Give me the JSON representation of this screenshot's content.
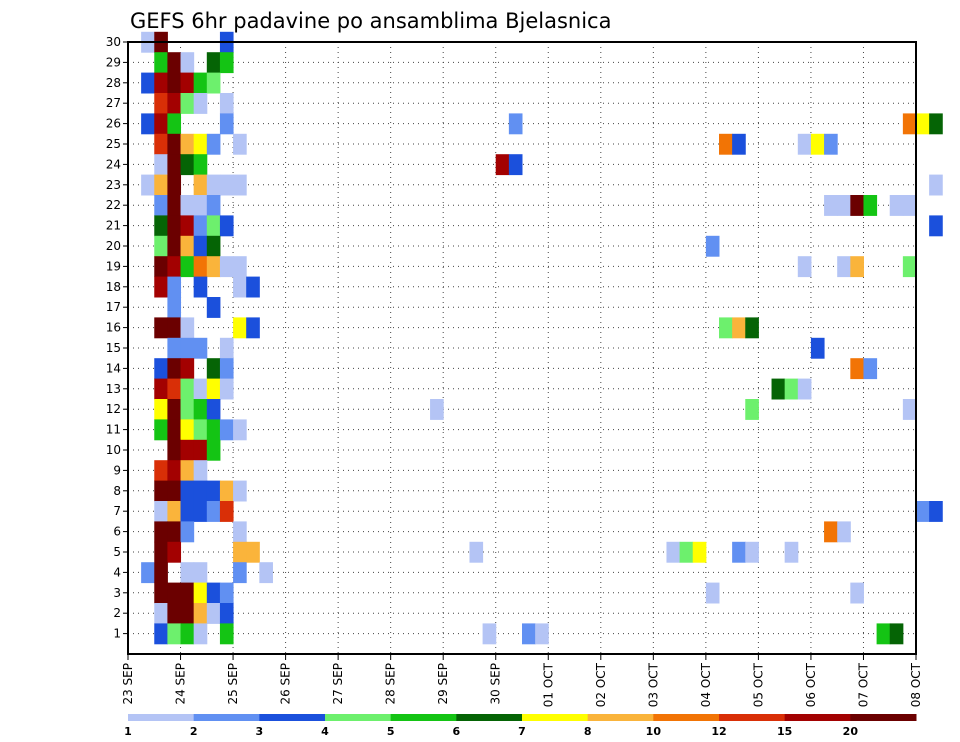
{
  "chart_data": {
    "type": "heatmap",
    "title": "GEFS 6hr padavine po ansamblima Bjelasnica",
    "xlabel": "",
    "ylabel": "",
    "y_ticks": [
      30,
      29,
      28,
      27,
      26,
      25,
      24,
      23,
      22,
      21,
      20,
      19,
      18,
      17,
      16,
      15,
      14,
      13,
      12,
      11,
      10,
      9,
      8,
      7,
      6,
      5,
      4,
      3,
      2,
      1
    ],
    "y_range": [
      0,
      30
    ],
    "x_tick_labels": [
      "23 SEP",
      "24 SEP",
      "25 SEP",
      "26 SEP",
      "27 SEP",
      "28 SEP",
      "29 SEP",
      "30 SEP",
      "01 OCT",
      "02 OCT",
      "03 OCT",
      "04 OCT",
      "05 OCT",
      "06 OCT",
      "07 OCT",
      "08 OCT"
    ],
    "x_range_days": [
      0,
      15
    ],
    "time_step_hours": 6,
    "grid": true,
    "colorbar": {
      "placement": "bottom",
      "tick_labels": [
        "1",
        "2",
        "3",
        "4",
        "5",
        "6",
        "7",
        "8",
        "10",
        "12",
        "15",
        "20"
      ],
      "colors": [
        "#b4c4f5",
        "#6190f2",
        "#1b50dc",
        "#6df06d",
        "#14c414",
        "#056405",
        "#ffff00",
        "#fab43b",
        "#f27405",
        "#d92f07",
        "#a30101",
        "#6b0000"
      ]
    },
    "cells": [
      [
        30,
        1,
        0
      ],
      [
        30,
        2,
        11
      ],
      [
        30,
        7,
        2
      ],
      [
        29,
        2,
        4
      ],
      [
        29,
        3,
        11
      ],
      [
        29,
        4,
        0
      ],
      [
        29,
        6,
        5
      ],
      [
        29,
        7,
        4
      ],
      [
        28,
        1,
        2
      ],
      [
        28,
        2,
        10
      ],
      [
        28,
        3,
        11
      ],
      [
        28,
        4,
        10
      ],
      [
        28,
        5,
        4
      ],
      [
        28,
        6,
        3
      ],
      [
        27,
        2,
        9
      ],
      [
        27,
        3,
        10
      ],
      [
        27,
        4,
        3
      ],
      [
        27,
        5,
        0
      ],
      [
        27,
        7,
        0
      ],
      [
        26,
        1,
        2
      ],
      [
        26,
        2,
        10
      ],
      [
        26,
        3,
        4
      ],
      [
        26,
        7,
        1
      ],
      [
        26,
        29,
        1
      ],
      [
        26,
        59,
        8
      ],
      [
        26,
        60,
        6
      ],
      [
        26,
        61,
        5
      ],
      [
        25,
        2,
        9
      ],
      [
        25,
        3,
        11
      ],
      [
        25,
        4,
        7
      ],
      [
        25,
        5,
        6
      ],
      [
        25,
        6,
        1
      ],
      [
        25,
        8,
        0
      ],
      [
        25,
        45,
        8
      ],
      [
        25,
        46,
        2
      ],
      [
        25,
        51,
        0
      ],
      [
        25,
        52,
        6
      ],
      [
        25,
        53,
        1
      ],
      [
        24,
        2,
        0
      ],
      [
        24,
        3,
        11
      ],
      [
        24,
        4,
        5
      ],
      [
        24,
        5,
        4
      ],
      [
        24,
        28,
        10
      ],
      [
        24,
        29,
        2
      ],
      [
        23,
        1,
        0
      ],
      [
        23,
        2,
        7
      ],
      [
        23,
        3,
        11
      ],
      [
        23,
        5,
        7
      ],
      [
        23,
        6,
        0
      ],
      [
        23,
        7,
        0
      ],
      [
        23,
        8,
        0
      ],
      [
        23,
        61,
        0
      ],
      [
        22,
        2,
        1
      ],
      [
        22,
        3,
        11
      ],
      [
        22,
        4,
        0
      ],
      [
        22,
        5,
        0
      ],
      [
        22,
        6,
        1
      ],
      [
        22,
        53,
        0
      ],
      [
        22,
        54,
        0
      ],
      [
        22,
        55,
        11
      ],
      [
        22,
        56,
        4
      ],
      [
        22,
        58,
        0
      ],
      [
        22,
        59,
        0
      ],
      [
        21,
        2,
        5
      ],
      [
        21,
        3,
        11
      ],
      [
        21,
        4,
        10
      ],
      [
        21,
        5,
        1
      ],
      [
        21,
        6,
        3
      ],
      [
        21,
        7,
        2
      ],
      [
        21,
        61,
        2
      ],
      [
        20,
        2,
        3
      ],
      [
        20,
        3,
        11
      ],
      [
        20,
        4,
        7
      ],
      [
        20,
        5,
        2
      ],
      [
        20,
        6,
        5
      ],
      [
        20,
        44,
        1
      ],
      [
        19,
        2,
        11
      ],
      [
        19,
        3,
        10
      ],
      [
        19,
        4,
        4
      ],
      [
        19,
        5,
        8
      ],
      [
        19,
        6,
        7
      ],
      [
        19,
        7,
        0
      ],
      [
        19,
        8,
        0
      ],
      [
        19,
        51,
        0
      ],
      [
        19,
        54,
        0
      ],
      [
        19,
        55,
        7
      ],
      [
        19,
        59,
        3
      ],
      [
        18,
        2,
        10
      ],
      [
        18,
        3,
        1
      ],
      [
        18,
        5,
        2
      ],
      [
        18,
        8,
        0
      ],
      [
        18,
        9,
        2
      ],
      [
        17,
        3,
        1
      ],
      [
        17,
        6,
        2
      ],
      [
        16,
        2,
        11
      ],
      [
        16,
        3,
        11
      ],
      [
        16,
        4,
        0
      ],
      [
        16,
        8,
        6
      ],
      [
        16,
        9,
        2
      ],
      [
        16,
        45,
        3
      ],
      [
        16,
        46,
        7
      ],
      [
        16,
        47,
        5
      ],
      [
        15,
        3,
        1
      ],
      [
        15,
        4,
        1
      ],
      [
        15,
        5,
        1
      ],
      [
        15,
        7,
        0
      ],
      [
        15,
        52,
        2
      ],
      [
        14,
        2,
        2
      ],
      [
        14,
        3,
        11
      ],
      [
        14,
        4,
        10
      ],
      [
        14,
        6,
        5
      ],
      [
        14,
        7,
        1
      ],
      [
        14,
        55,
        8
      ],
      [
        14,
        56,
        1
      ],
      [
        13,
        2,
        10
      ],
      [
        13,
        3,
        9
      ],
      [
        13,
        4,
        3
      ],
      [
        13,
        5,
        0
      ],
      [
        13,
        6,
        6
      ],
      [
        13,
        7,
        0
      ],
      [
        13,
        49,
        5
      ],
      [
        13,
        50,
        3
      ],
      [
        13,
        51,
        0
      ],
      [
        12,
        2,
        6
      ],
      [
        12,
        3,
        11
      ],
      [
        12,
        4,
        3
      ],
      [
        12,
        5,
        4
      ],
      [
        12,
        6,
        2
      ],
      [
        12,
        23,
        0
      ],
      [
        12,
        47,
        3
      ],
      [
        12,
        59,
        0
      ],
      [
        11,
        2,
        4
      ],
      [
        11,
        3,
        11
      ],
      [
        11,
        4,
        6
      ],
      [
        11,
        5,
        3
      ],
      [
        11,
        6,
        4
      ],
      [
        11,
        7,
        1
      ],
      [
        11,
        8,
        0
      ],
      [
        10,
        3,
        11
      ],
      [
        10,
        4,
        10
      ],
      [
        10,
        5,
        10
      ],
      [
        10,
        6,
        4
      ],
      [
        9,
        2,
        9
      ],
      [
        9,
        3,
        10
      ],
      [
        9,
        4,
        7
      ],
      [
        9,
        5,
        0
      ],
      [
        8,
        2,
        11
      ],
      [
        8,
        3,
        11
      ],
      [
        8,
        4,
        2
      ],
      [
        8,
        5,
        2
      ],
      [
        8,
        6,
        2
      ],
      [
        8,
        7,
        7
      ],
      [
        8,
        8,
        0
      ],
      [
        7,
        2,
        0
      ],
      [
        7,
        3,
        7
      ],
      [
        7,
        4,
        2
      ],
      [
        7,
        5,
        2
      ],
      [
        7,
        6,
        1
      ],
      [
        7,
        7,
        9
      ],
      [
        7,
        60,
        1
      ],
      [
        7,
        61,
        2
      ],
      [
        6,
        2,
        11
      ],
      [
        6,
        3,
        11
      ],
      [
        6,
        4,
        1
      ],
      [
        6,
        8,
        0
      ],
      [
        6,
        53,
        8
      ],
      [
        6,
        54,
        0
      ],
      [
        5,
        2,
        11
      ],
      [
        5,
        3,
        10
      ],
      [
        5,
        8,
        7
      ],
      [
        5,
        9,
        7
      ],
      [
        5,
        26,
        0
      ],
      [
        5,
        41,
        0
      ],
      [
        5,
        42,
        3
      ],
      [
        5,
        43,
        6
      ],
      [
        5,
        46,
        1
      ],
      [
        5,
        47,
        0
      ],
      [
        5,
        50,
        0
      ],
      [
        4,
        1,
        1
      ],
      [
        4,
        2,
        11
      ],
      [
        4,
        4,
        0
      ],
      [
        4,
        5,
        0
      ],
      [
        4,
        8,
        1
      ],
      [
        4,
        10,
        0
      ],
      [
        3,
        2,
        11
      ],
      [
        3,
        3,
        11
      ],
      [
        3,
        4,
        11
      ],
      [
        3,
        5,
        6
      ],
      [
        3,
        6,
        2
      ],
      [
        3,
        7,
        1
      ],
      [
        3,
        44,
        0
      ],
      [
        3,
        55,
        0
      ],
      [
        2,
        2,
        0
      ],
      [
        2,
        3,
        11
      ],
      [
        2,
        4,
        11
      ],
      [
        2,
        5,
        7
      ],
      [
        2,
        6,
        0
      ],
      [
        2,
        7,
        2
      ],
      [
        1,
        2,
        2
      ],
      [
        1,
        3,
        3
      ],
      [
        1,
        4,
        4
      ],
      [
        1,
        5,
        0
      ],
      [
        1,
        7,
        4
      ],
      [
        1,
        27,
        0
      ],
      [
        1,
        30,
        1
      ],
      [
        1,
        31,
        0
      ],
      [
        1,
        57,
        4
      ],
      [
        1,
        58,
        5
      ]
    ]
  }
}
